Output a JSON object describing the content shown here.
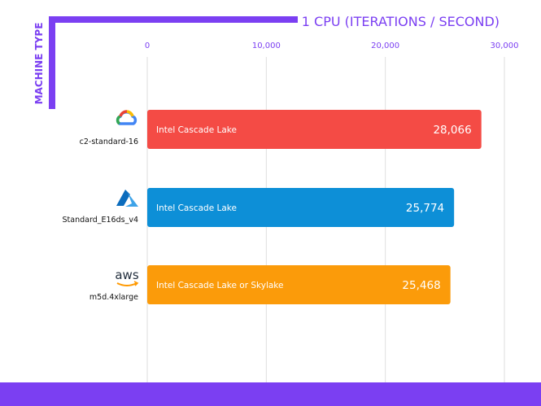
{
  "chart_data": {
    "type": "bar",
    "orientation": "horizontal",
    "title": "1 CPU (ITERATIONS / SECOND)",
    "ylabel": "MACHINE TYPE",
    "xlim": [
      0,
      30000
    ],
    "x_ticks": [
      {
        "value": 0,
        "label": "0"
      },
      {
        "value": 10000,
        "label": "10,000"
      },
      {
        "value": 20000,
        "label": "20,000"
      },
      {
        "value": 30000,
        "label": "30,000"
      }
    ],
    "grid": true,
    "categories": [
      "c2-standard-16",
      "Standard_E16ds_v4",
      "m5d.4xlarge"
    ],
    "values": [
      28066,
      25774,
      25468
    ],
    "value_labels": [
      "28,066",
      "25,774",
      "25,468"
    ],
    "bar_labels": [
      "Intel Cascade Lake",
      "Intel Cascade Lake",
      "Intel Cascade Lake or Skylake"
    ],
    "providers": [
      {
        "name": "Google Cloud",
        "icon": "google-cloud-icon"
      },
      {
        "name": "Azure",
        "icon": "azure-icon"
      },
      {
        "name": "aws",
        "icon": "aws-icon"
      }
    ],
    "colors": [
      "#f44b45",
      "#0d8fd7",
      "#fb9b0a"
    ]
  },
  "colors": {
    "accent": "#7b3ff2",
    "grid": "#dedede",
    "tick_text": "#7b3ff2"
  }
}
